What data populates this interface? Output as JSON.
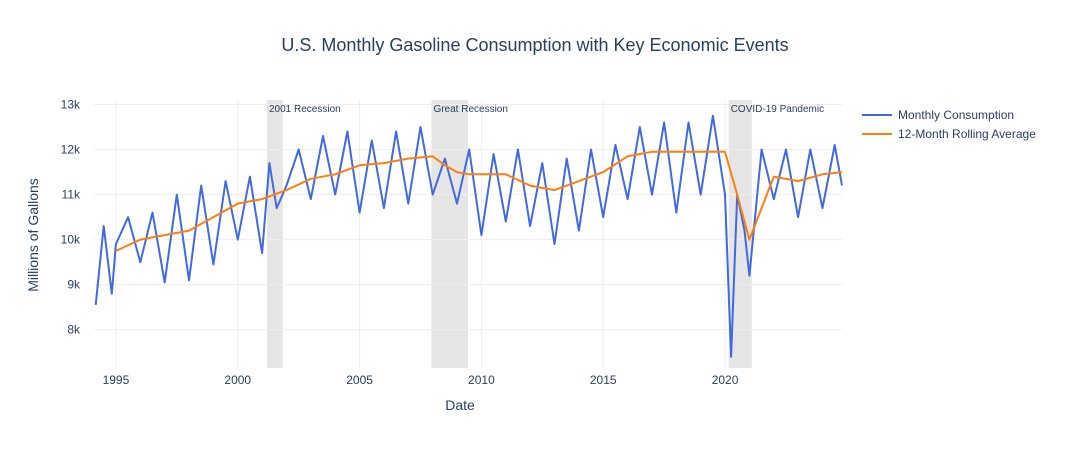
{
  "chart_data": {
    "type": "line",
    "title": "U.S. Monthly Gasoline Consumption with Key Economic Events",
    "xlabel": "Date",
    "ylabel": "Millions of Gallons",
    "xlim": [
      1994.1,
      2024.8
    ],
    "ylim": [
      7150,
      13100
    ],
    "x_ticks": [
      1995,
      2000,
      2005,
      2010,
      2015,
      2020
    ],
    "x_tick_labels": [
      "1995",
      "2000",
      "2005",
      "2010",
      "2015",
      "2020"
    ],
    "y_ticks": [
      8000,
      9000,
      10000,
      11000,
      12000,
      13000
    ],
    "y_tick_labels": [
      "8k",
      "9k",
      "10k",
      "11k",
      "12k",
      "13k"
    ],
    "grid": true,
    "legend_position": "top-right, outside plot",
    "events": [
      {
        "label": "2001 Recession",
        "start": 2001.2,
        "end": 2001.85
      },
      {
        "label": "Great Recession",
        "start": 2007.95,
        "end": 2009.45
      },
      {
        "label": "COVID-19 Pandemic",
        "start": 2020.15,
        "end": 2021.1
      }
    ],
    "series": [
      {
        "name": "Monthly Consumption",
        "color": "#4169e1",
        "x": [
          1994.17,
          1994.5,
          1994.83,
          1995.0,
          1995.5,
          1996.0,
          1996.5,
          1997.0,
          1997.5,
          1998.0,
          1998.5,
          1999.0,
          1999.5,
          2000.0,
          2000.5,
          2001.0,
          2001.3,
          2001.6,
          2002.0,
          2002.5,
          2003.0,
          2003.5,
          2004.0,
          2004.5,
          2005.0,
          2005.5,
          2006.0,
          2006.5,
          2007.0,
          2007.5,
          2008.0,
          2008.5,
          2009.0,
          2009.5,
          2010.0,
          2010.5,
          2011.0,
          2011.5,
          2012.0,
          2012.5,
          2013.0,
          2013.5,
          2014.0,
          2014.5,
          2015.0,
          2015.5,
          2016.0,
          2016.5,
          2017.0,
          2017.5,
          2018.0,
          2018.5,
          2019.0,
          2019.5,
          2019.8,
          2020.0,
          2020.25,
          2020.5,
          2020.8,
          2021.0,
          2021.5,
          2022.0,
          2022.5,
          2023.0,
          2023.5,
          2024.0,
          2024.5,
          2024.8
        ],
        "y": [
          8550,
          10300,
          8800,
          9900,
          10500,
          9500,
          10600,
          9050,
          11000,
          9100,
          11200,
          9450,
          11300,
          10000,
          11400,
          9700,
          11700,
          10700,
          11200,
          12000,
          10900,
          12300,
          11000,
          12400,
          10600,
          12200,
          10700,
          12400,
          10800,
          12500,
          11000,
          11800,
          10800,
          12000,
          10100,
          11900,
          10400,
          12000,
          10300,
          11700,
          9900,
          11800,
          10200,
          12000,
          10500,
          12100,
          10900,
          12500,
          11000,
          12600,
          10600,
          12600,
          11000,
          12750,
          11700,
          11000,
          7400,
          11000,
          10200,
          9200,
          12000,
          10900,
          12000,
          10500,
          12000,
          10700,
          12100,
          11200
        ]
      },
      {
        "name": "12-Month Rolling Average",
        "color": "#ff7f0e",
        "x": [
          1995.0,
          1996.0,
          1997.0,
          1998.0,
          1999.0,
          2000.0,
          2001.0,
          2002.0,
          2003.0,
          2004.0,
          2005.0,
          2006.0,
          2007.0,
          2008.0,
          2008.5,
          2009.0,
          2009.5,
          2010.0,
          2011.0,
          2012.0,
          2013.0,
          2014.0,
          2015.0,
          2016.0,
          2017.0,
          2018.0,
          2019.0,
          2020.0,
          2020.5,
          2021.0,
          2021.5,
          2022.0,
          2023.0,
          2024.0,
          2024.8
        ],
        "y": [
          9750,
          10000,
          10100,
          10200,
          10500,
          10800,
          10900,
          11100,
          11350,
          11450,
          11650,
          11700,
          11800,
          11850,
          11650,
          11500,
          11450,
          11450,
          11450,
          11200,
          11100,
          11300,
          11500,
          11850,
          11950,
          11950,
          11950,
          11950,
          11000,
          10000,
          10700,
          11400,
          11300,
          11450,
          11500
        ]
      }
    ]
  }
}
